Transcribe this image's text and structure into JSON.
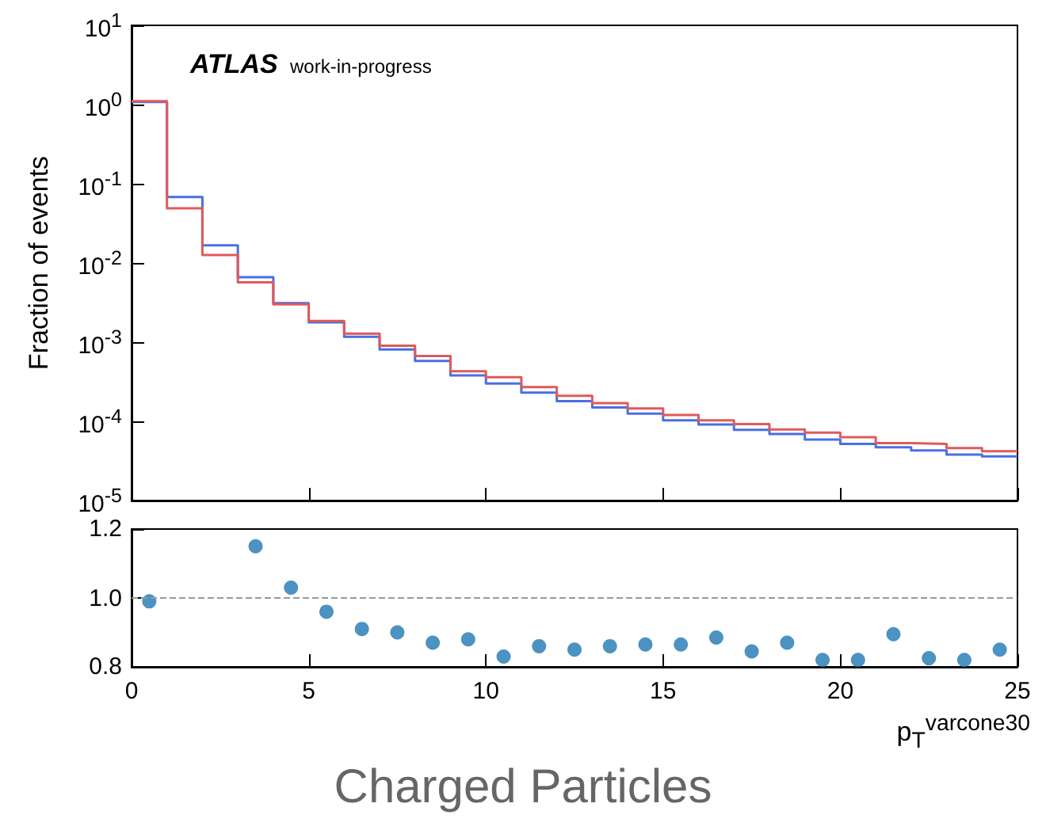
{
  "chart_data": [
    {
      "type": "histogram",
      "ylabel": "Fraction of events",
      "annotations": [
        "ATLAS",
        "work-in-progress"
      ],
      "bins": [
        0,
        1,
        2,
        3,
        4,
        5,
        6,
        7,
        8,
        9,
        10,
        11,
        12,
        13,
        14,
        15,
        16,
        17,
        18,
        19,
        20,
        21,
        22,
        23,
        24,
        25
      ],
      "series": [
        {
          "color": "#4a6fe3",
          "values": [
            1.08,
            0.068,
            0.0167,
            0.0066,
            0.0031,
            0.00178,
            0.00117,
            0.00081,
            0.00058,
            0.00038,
            0.0003,
            0.00023,
            0.00018,
            0.00015,
            0.000125,
            0.000103,
            9.1e-05,
            7.8e-05,
            6.9e-05,
            5.9e-05,
            5.2e-05,
            4.7e-05,
            4.3e-05,
            3.8e-05,
            3.6e-05
          ]
        },
        {
          "color": "#e05a5a",
          "values": [
            1.1,
            0.049,
            0.0126,
            0.0057,
            0.003,
            0.00185,
            0.00128,
            0.0009,
            0.00067,
            0.00043,
            0.00036,
            0.00027,
            0.00021,
            0.00017,
            0.000145,
            0.00012,
            0.000103,
            9.2e-05,
            7.9e-05,
            7.2e-05,
            6.3e-05,
            5.3e-05,
            5.2e-05,
            4.6e-05,
            4.2e-05
          ]
        }
      ],
      "log": "y",
      "xlim": [
        0,
        25
      ],
      "xticks": [
        0,
        5,
        10,
        15,
        20,
        25
      ],
      "ylim": [
        1e-05,
        10
      ],
      "yticks": [
        {
          "value": 1e-05,
          "label": "10$^{-5}$"
        },
        {
          "value": 0.0001,
          "label": "10$^{-4}$"
        },
        {
          "value": 0.001,
          "label": "10$^{-3}$"
        },
        {
          "value": 0.01,
          "label": "10$^{-2}$"
        },
        {
          "value": 0.1,
          "label": "10$^{-1}$"
        },
        {
          "value": 1,
          "label": "10$^{0}$"
        },
        {
          "value": 10,
          "label": "10$^{1}$"
        }
      ],
      "tick_labels": "y",
      "grid": false
    },
    {
      "type": "scatter",
      "xlabel": "p$_{T}$$^{varcone30}$",
      "annotations": [
        "Charged Particles"
      ],
      "x": [
        0.5,
        1.5,
        2.5,
        3.5,
        4.5,
        5.5,
        6.5,
        7.5,
        8.5,
        9.5,
        10.5,
        11.5,
        12.5,
        13.5,
        14.5,
        15.5,
        16.5,
        17.5,
        18.5,
        19.5,
        20.5,
        21.5,
        22.5,
        23.5,
        24.5
      ],
      "series": [
        {
          "color": "#1f77b4",
          "values": [
            0.99,
            null,
            null,
            1.15,
            1.03,
            0.96,
            0.91,
            0.9,
            0.87,
            0.88,
            0.83,
            0.86,
            0.85,
            0.86,
            0.865,
            0.865,
            0.885,
            0.845,
            0.87,
            0.82,
            0.82,
            0.895,
            0.825,
            0.82,
            0.85
          ]
        }
      ],
      "xlim": [
        0,
        25
      ],
      "xticks": [
        0,
        5,
        10,
        15,
        20,
        25
      ],
      "ylim": [
        0.8,
        1.2
      ],
      "yticks": [
        {
          "value": 0.8,
          "label": "0.8"
        },
        {
          "value": 1.0,
          "label": "1.0"
        },
        {
          "value": 1.2,
          "label": "1.2"
        }
      ],
      "ref_lines": [
        {
          "axis": "y",
          "value": 1.0,
          "color": "#999999",
          "line_style": "dashed"
        }
      ],
      "marker": "circle",
      "grid": false
    }
  ]
}
